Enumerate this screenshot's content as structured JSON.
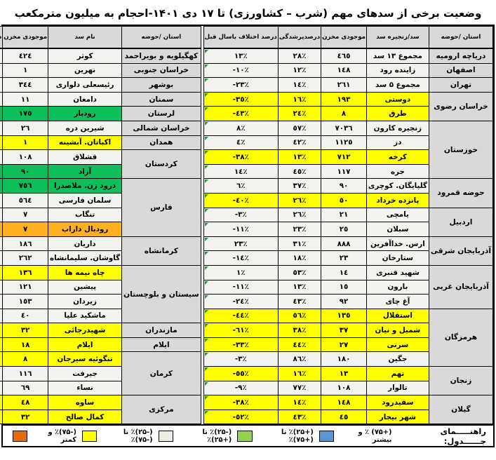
{
  "title": "وضعیت برخی از سدهای مهم (شرب – کشاورزی) تا ۱۷ دی ۱۴۰۱-احجام به میلیون مترمکعب",
  "colors": {
    "plain": "#f3f2ec",
    "yellow": "#ffff00",
    "green": "#0cbf58",
    "orange": "#ffb020",
    "header_bg": "#d9d9d9",
    "flag_triangle": "#1d9e42",
    "border": "#000000"
  },
  "chart_data": {
    "type": "table",
    "tables": [
      {
        "side": "right",
        "headers": {
          "province": "استان /حوضه",
          "name": "سد/زنجیره سد",
          "storage": "موجودی مخزن",
          "fill": "درصدپرشدگی",
          "diff": "درصد اختلاف باسال قبل"
        },
        "groups": [
          {
            "province": "دریاچه ارومیه",
            "rows": [
              [
                "مجموع ۱۳ سد",
                "٤٦٥",
                "٢٨٪",
                "١٣٪",
                "plain"
              ]
            ]
          },
          {
            "province": "اصفهان",
            "rows": [
              [
                "زاینده رود",
                "١٤٨",
                "١٢٪",
                "-١٠٪",
                "plain"
              ]
            ]
          },
          {
            "province": "تهران",
            "rows": [
              [
                "مجموع ۵ سد",
                "٢٦١",
                "١٤٪",
                "-٢٣٪",
                "plain"
              ]
            ]
          },
          {
            "province": "خراسان رضوی",
            "rows": [
              [
                "دوستی",
                "١٩٣",
                "١٦٪",
                "-٣٥٪",
                "yellow"
              ],
              [
                "طرق",
                "٨",
                "٢٤٪",
                "-٤٣٪",
                "yellow"
              ]
            ]
          },
          {
            "province": "خوزستان",
            "rows": [
              [
                "زنجیره کارون",
                "٧٠٣٦",
                "٥٧٪",
                "٨٪",
                "plain"
              ],
              [
                "دز",
                "١١٢٥",
                "٤٢٪",
                "٤٪",
                "plain"
              ],
              [
                "کرخه",
                "٧١٢",
                "١٣٪",
                "-٣٨٪",
                "yellow"
              ],
              [
                "جره",
                "١١٧",
                "٤٥٪",
                "١٤٪",
                "plain"
              ]
            ]
          },
          {
            "province": "حوضه قمرود",
            "rows": [
              [
                "گلپایگان. کوچری",
                "٩٠",
                "٣٧٪",
                "٦٪",
                "plain"
              ],
              [
                "پانزده خرداد",
                "٥٠",
                "٢٦٪",
                "-٤٠٪",
                "yellow"
              ]
            ]
          },
          {
            "province": "اردبیل",
            "rows": [
              [
                "یامچی",
                "٢١",
                "٢٦٪",
                "-٣٪",
                "plain"
              ],
              [
                "سبلان",
                "٢٥",
                "٢٣٪",
                "-١١٪",
                "plain"
              ]
            ]
          },
          {
            "province": "آذربایجان شرقی",
            "rows": [
              [
                "ارس. خداآفرین",
                "٨٨٨",
                "٣١٪",
                "٢٣٪",
                "plain"
              ],
              [
                "ستارخان",
                "٢٣",
                "١٨٪",
                "-١٤٪",
                "plain"
              ]
            ]
          },
          {
            "province": "آذربایجان غربی",
            "rows": [
              [
                "شهید قنبری",
                "١٤",
                "٥٣٪",
                "١٪",
                "plain"
              ],
              [
                "بارون",
                "١٥",
                "١٣٪",
                "-١١٪",
                "plain"
              ],
              [
                "آغ چای",
                "٩٢",
                "٤٣٪",
                "-٢٤٪",
                "plain"
              ]
            ]
          },
          {
            "province": "هرمزگان",
            "rows": [
              [
                "استقلال",
                "١٣٥",
                "٥٦٪",
                "-٤٤٪",
                "yellow"
              ],
              [
                "شمیل و نیان",
                "٣٧",
                "٣٨٪",
                "-٦١٪",
                "yellow"
              ],
              [
                "سرنی",
                "٢٧",
                "٤٤٪",
                "-٣٣٪",
                "yellow"
              ],
              [
                "جگین",
                "١٨٠",
                "٨٦٪",
                "-٣٪",
                "plain"
              ]
            ]
          },
          {
            "province": "زنجان",
            "rows": [
              [
                "تهم",
                "١٣",
                "١٦٪",
                "-٥٥٪",
                "yellow"
              ],
              [
                "تالوار",
                "١٠٨",
                "٧٧٪",
                "-٩٪",
                "plain"
              ]
            ]
          },
          {
            "province": "گیلان",
            "rows": [
              [
                "سفیدرود",
                "١٤٨",
                "١٤٪",
                "-٣٨٪",
                "yellow"
              ],
              [
                "شهر بیجار",
                "٤٥",
                "٤٣٪",
                "-٥٢٪",
                "yellow"
              ]
            ]
          }
        ]
      },
      {
        "side": "left",
        "headers": {
          "province": "استان /حوضه",
          "name": "نام سد",
          "storage": "موجودی مخزن",
          "fill": "درصدپرشدگی",
          "diff": "درصد اختلاف باسال قبل"
        },
        "groups": [
          {
            "province": "کهگیلویه و بویراحمد",
            "rows": [
              [
                "کوثر",
                "٤٢٤",
                "٧٧٪",
                "-١٪",
                "plain"
              ]
            ]
          },
          {
            "province": "خراسان جنوبی",
            "rows": [
              [
                "نهرین",
                "١",
                "١٣٪",
                "٢٣٪",
                "plain"
              ]
            ]
          },
          {
            "province": "بوشهر",
            "rows": [
              [
                "رئیسعلی دلواری",
                "٣٤٤",
                "٥٠٪",
                "١١٪",
                "plain"
              ]
            ]
          },
          {
            "province": "سمنان",
            "rows": [
              [
                "دامغان",
                "١١",
                "٦٧٪",
                "-١٥٪",
                "plain"
              ]
            ]
          },
          {
            "province": "لرستان",
            "rows": [
              [
                "رودبار",
                "١٧٥",
                "٨١٪",
                "٥٧٪",
                "green"
              ]
            ]
          },
          {
            "province": "خراسان شمالی",
            "rows": [
              [
                "شیرین دره",
                "٢٦",
                "٤٣٪",
                "-٢٠٪",
                "plain"
              ]
            ]
          },
          {
            "province": "همدان",
            "rows": [
              [
                "اکباتان. آبشینه",
                "١",
                "٣٪",
                "-٦٤٪",
                "yellow"
              ]
            ]
          },
          {
            "province": "کردستان",
            "rows": [
              [
                "قشلاق",
                "١٠٨",
                "٥٠٪",
                "-١٣٪",
                "plain"
              ],
              [
                "آزاد",
                "٩٠",
                "٣٠٪",
                "٣٥٪",
                "green"
              ]
            ]
          },
          {
            "province": "فارس",
            "rows": [
              [
                "درود زن. ملاصدرا",
                "٧٥٦",
                "٥٤٪",
                "٢٦٪",
                "green"
              ],
              [
                "سلمان فارسی",
                "٥٦٤",
                "٥٩٪",
                "-١٤٪",
                "plain"
              ],
              [
                "تنگاب",
                "٧",
                "٥٪",
                "٩٪",
                "plain"
              ],
              [
                "رودبال داراب",
                "٧",
                "٩٪",
                "-٧٩٪",
                "orange"
              ]
            ]
          },
          {
            "province": "کرمانشاه",
            "rows": [
              [
                "داریان",
                "١٨٦",
                "٥٥٪",
                "٠٪",
                "plain"
              ],
              [
                "گاوشان. سلیمانشاه",
                "٢٦٢",
                "٤٣٪",
                "-٢٤٪",
                "plain"
              ]
            ]
          },
          {
            "province": "سیستان و بلوچستان",
            "rows": [
              [
                "چاه نیمه ها",
                "١٣٦",
                "٩٪",
                "-٥٦٪",
                "yellow"
              ],
              [
                "پیشین",
                "١٢١",
                "٧٢٪",
                "٠٪",
                "plain"
              ],
              [
                "زیردان",
                "١٥٣",
                "٧٤٪",
                "-١٠٪",
                "plain"
              ],
              [
                "ماشکید علیا",
                "٤٠",
                "٦٠٪",
                "١٦٪",
                "plain"
              ]
            ]
          },
          {
            "province": "مازندران",
            "rows": [
              [
                "شهیدرجائی",
                "٣٢",
                "٢٠٪",
                "-٥٥٪",
                "yellow"
              ]
            ]
          },
          {
            "province": "ایلام",
            "rows": [
              [
                "ایلام",
                "١٨",
                "٢٩٪",
                "-٤٦٪",
                "yellow"
              ]
            ]
          },
          {
            "province": "کرمان",
            "rows": [
              [
                "تنگوئیه سیرجان",
                "٨",
                "٢١٪",
                "-٤٣٪",
                "yellow"
              ],
              [
                "جیرفت",
                "١١٦",
                "٣٥٪",
                "-٦٪",
                "plain"
              ],
              [
                "نساء",
                "٦٩",
                "٤١٪",
                "١٣٪",
                "plain"
              ]
            ]
          },
          {
            "province": "مرکزی",
            "rows": [
              [
                "ساوه",
                "٤٨",
                "١٧٪",
                "-٥٧٪",
                "yellow"
              ],
              [
                "کمال صالح",
                "٣٢",
                "٣٤٪",
                "-٢٩٪",
                "yellow"
              ]
            ]
          }
        ]
      }
    ]
  },
  "legend": {
    "label": "راهنـــــمای جــــــدول:",
    "items": [
      {
        "label": "(+۷۵) ٪ و بیشتر",
        "color": "#5a96d2"
      },
      {
        "label": "(+۲۵)٪ تا (+۷۵)٪",
        "color": "#92d050"
      },
      {
        "label": "(-۲۵)٪ تا (+۲۵)٪",
        "color": "#efede2"
      },
      {
        "label": "(-۲۵)٪ تا (-۷۵)٪",
        "color": "#ffff00"
      },
      {
        "label": "(-۷۵)٪ و کمتر",
        "color": "#e26b0a"
      }
    ]
  }
}
